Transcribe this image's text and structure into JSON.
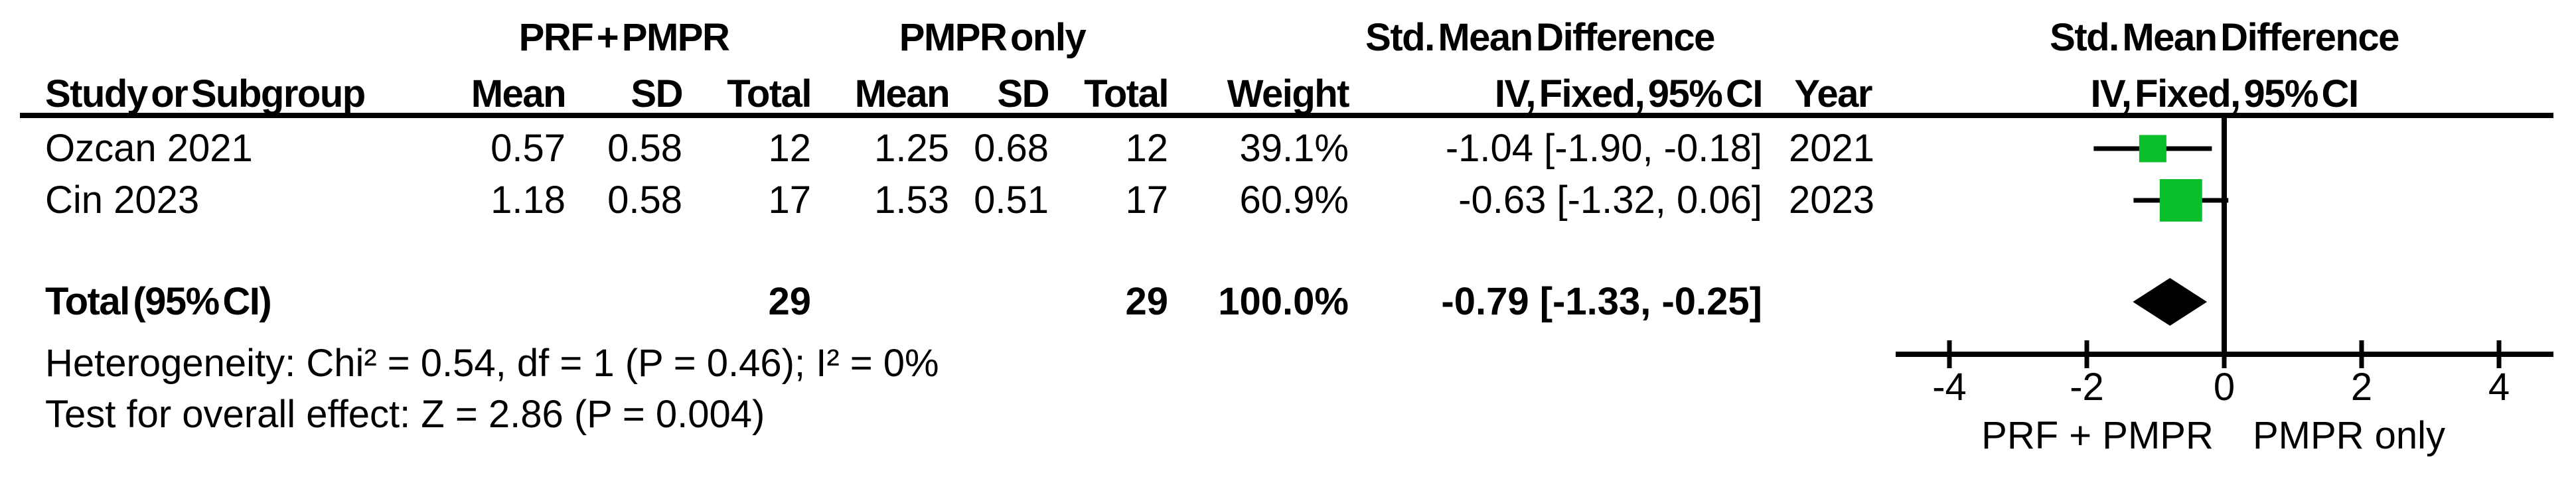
{
  "headers": {
    "study": "Study or Subgroup",
    "group1": "PRF + PMPR",
    "group2": "PMPR only",
    "effect": "Std. Mean Difference",
    "effect_sub": "IV, Fixed, 95% CI",
    "mean": "Mean",
    "sd": "SD",
    "total": "Total",
    "weight": "Weight",
    "year": "Year"
  },
  "rows": [
    {
      "study": "Ozcan 2021",
      "mean1": "0.57",
      "sd1": "0.58",
      "n1": "12",
      "mean2": "1.25",
      "sd2": "0.68",
      "n2": "12",
      "weight": "39.1%",
      "ci": "-1.04 [-1.90, -0.18]",
      "year": "2021"
    },
    {
      "study": "Cin 2023",
      "mean1": "1.18",
      "sd1": "0.58",
      "n1": "17",
      "mean2": "1.53",
      "sd2": "0.51",
      "n2": "17",
      "weight": "60.9%",
      "ci": "-0.63 [-1.32, 0.06]",
      "year": "2023"
    }
  ],
  "total_row": {
    "label": "Total (95% CI)",
    "n1": "29",
    "n2": "29",
    "weight": "100.0%",
    "ci": "-0.79 [-1.33, -0.25]"
  },
  "footnotes": {
    "heterogeneity": "Heterogeneity: Chi² = 0.54, df = 1 (P = 0.46); I² = 0%",
    "overall_effect": "Test for overall effect: Z = 2.86 (P = 0.004)"
  },
  "chart_data": {
    "type": "forest",
    "title": "Std. Mean Difference",
    "subtitle": "IV, Fixed, 95% CI",
    "x_ticks": [
      -4,
      -2,
      0,
      2,
      4
    ],
    "xlim": [
      -4.78,
      4.79
    ],
    "xlabel_left": "PRF + PMPR",
    "xlabel_right": "PMPR only",
    "studies": [
      {
        "name": "Ozcan 2021",
        "est": -1.04,
        "lo": -1.9,
        "hi": -0.18,
        "weight_pct": 39.1,
        "year": "2021"
      },
      {
        "name": "Cin 2023",
        "est": -0.63,
        "lo": -1.32,
        "hi": 0.06,
        "weight_pct": 60.9,
        "year": "2023"
      }
    ],
    "total": {
      "name": "Total (95% CI)",
      "est": -0.79,
      "lo": -1.33,
      "hi": -0.25,
      "weight_pct": 100.0
    },
    "colors": {
      "square": "#0BBE2C",
      "diamond": "#000000",
      "axis": "#000000"
    }
  }
}
